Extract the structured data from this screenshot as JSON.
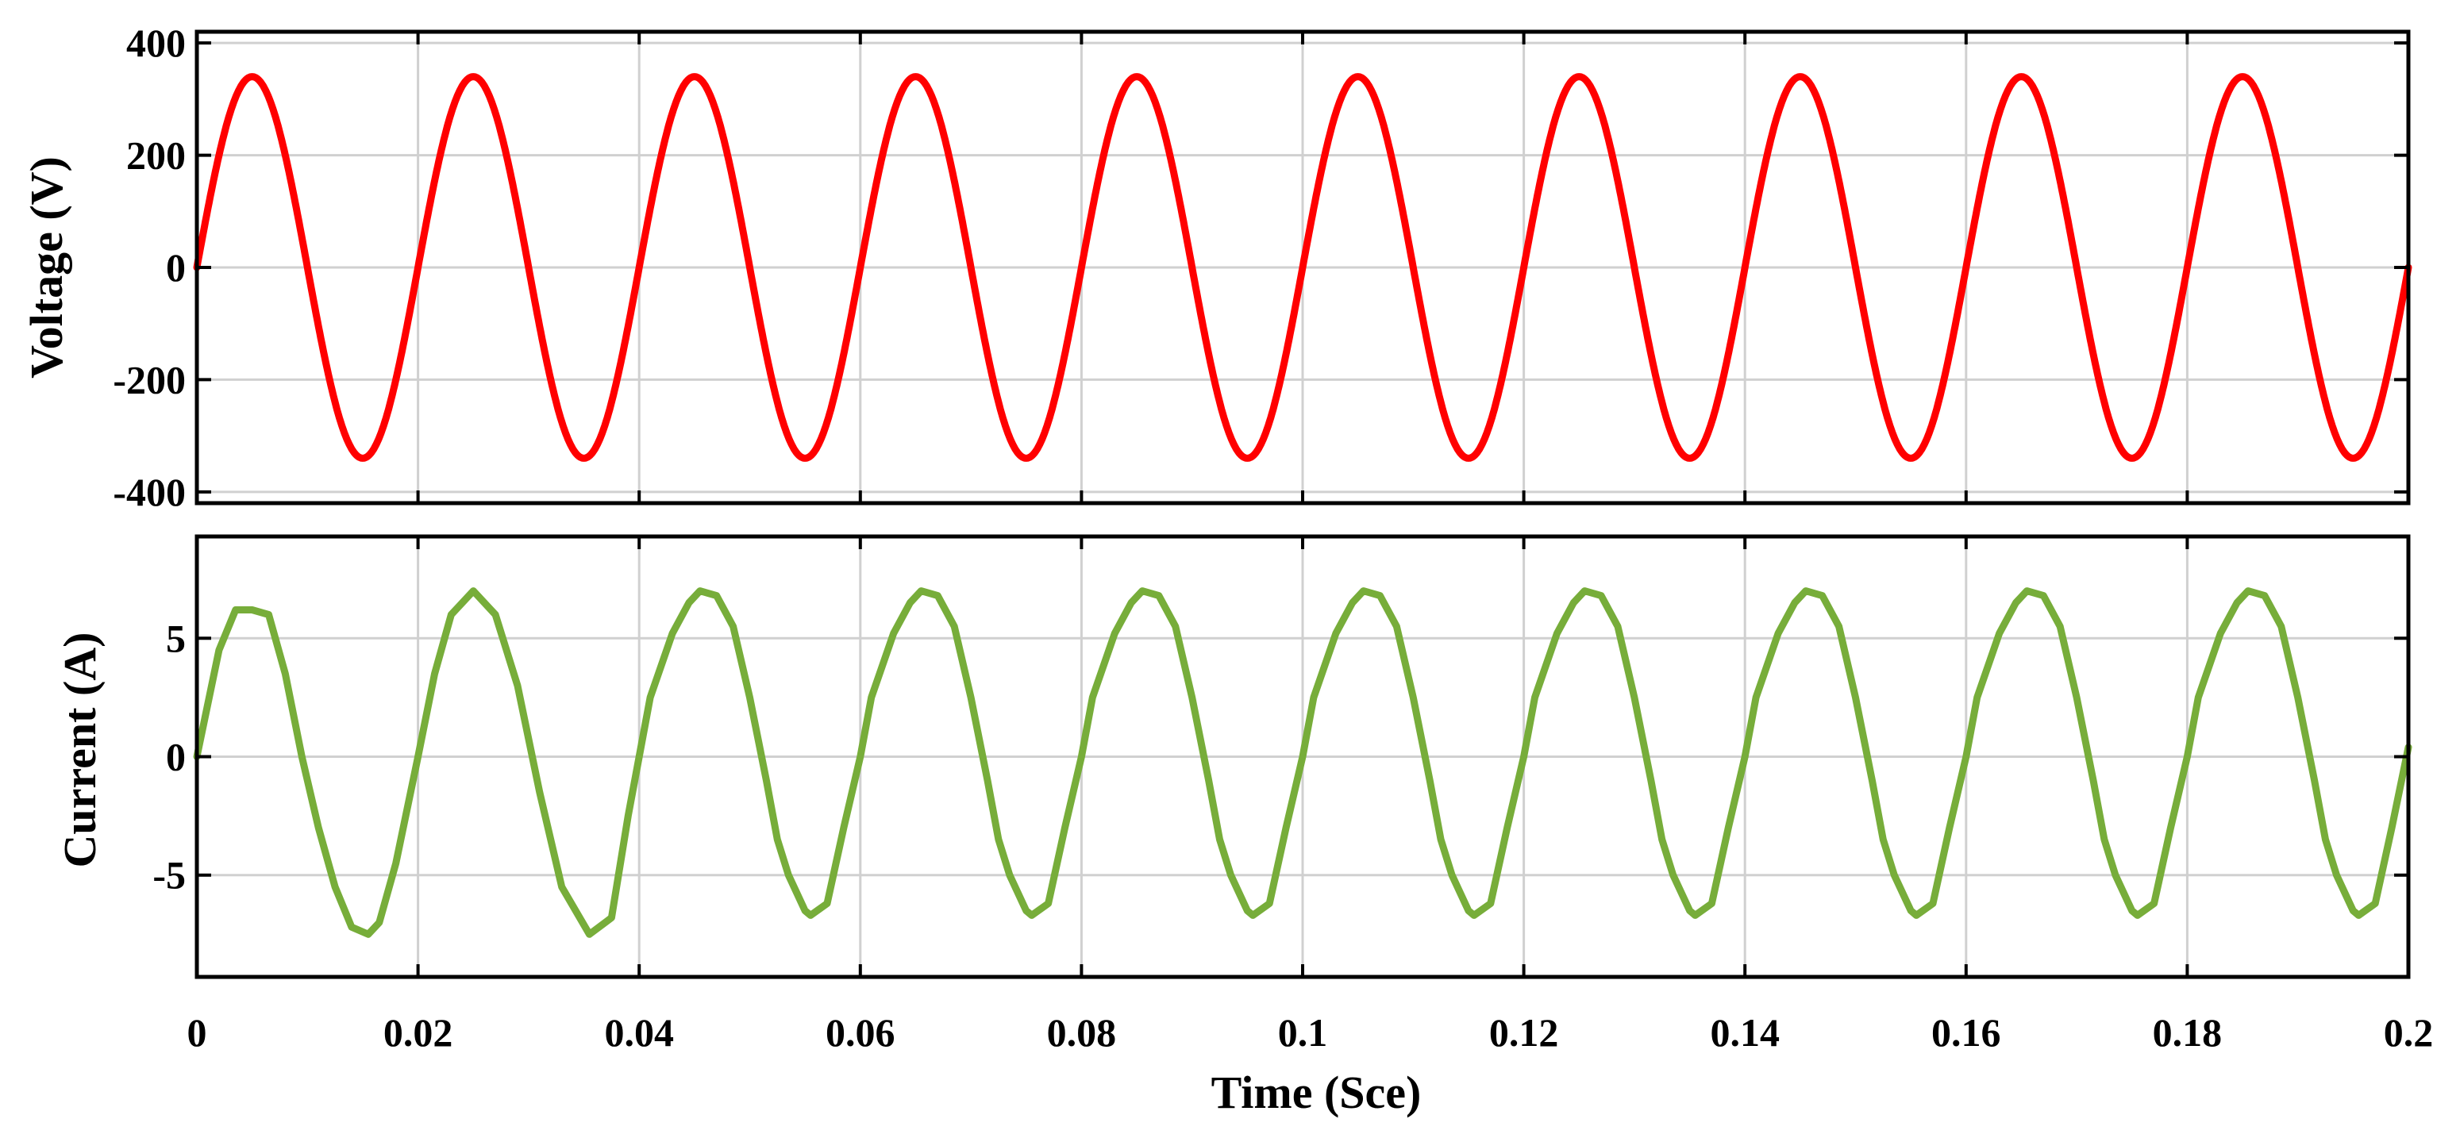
{
  "chart_data": [
    {
      "type": "line",
      "panel": "top",
      "ylabel": "Voltage (V)",
      "xlim": [
        0,
        0.2
      ],
      "ylim": [
        -420,
        420
      ],
      "yticks": [
        400,
        200,
        0,
        -200,
        -400
      ],
      "ytick_labels": [
        "400",
        "200",
        "0",
        "-200",
        "-400"
      ],
      "grid": true,
      "series": [
        {
          "name": "Voltage",
          "color": "#ff0000",
          "waveform": "sine",
          "amplitude": 340,
          "frequency_hz": 50,
          "x": [
            0,
            0.005,
            0.015,
            0.025,
            0.035,
            0.045,
            0.055,
            0.065,
            0.075,
            0.085,
            0.095,
            0.105,
            0.115,
            0.125,
            0.135,
            0.145,
            0.155,
            0.165,
            0.175,
            0.185,
            0.195,
            0.2
          ],
          "values": [
            0,
            340,
            -340,
            340,
            -340,
            340,
            -340,
            340,
            -340,
            340,
            -340,
            340,
            -340,
            340,
            -340,
            340,
            -340,
            340,
            -340,
            340,
            -340,
            0
          ]
        }
      ]
    },
    {
      "type": "line",
      "panel": "bottom",
      "ylabel": "Current (A)",
      "xlabel": "Time (Sce)",
      "xlim": [
        0,
        0.2
      ],
      "ylim": [
        -9.3,
        9.3
      ],
      "yticks": [
        5,
        0,
        -5
      ],
      "ytick_labels": [
        "5",
        "0",
        "-5"
      ],
      "xticks": [
        0,
        0.02,
        0.04,
        0.06,
        0.08,
        0.1,
        0.12,
        0.14,
        0.16,
        0.18,
        0.2
      ],
      "xtick_labels": [
        "0",
        "0.02",
        "0.04",
        "0.06",
        "0.08",
        "0.1",
        "0.12",
        "0.14",
        "0.16",
        "0.18",
        "0.2"
      ],
      "grid": true,
      "series": [
        {
          "name": "Current",
          "color": "#77ad3a",
          "first_cycle": {
            "x": [
              0,
              0.002,
              0.0035,
              0.005,
              0.0065,
              0.008,
              0.0095,
              0.011,
              0.0125,
              0.014,
              0.0155,
              0.0165,
              0.018,
              0.02,
              0.0215,
              0.023,
              0.025,
              0.027,
              0.029,
              0.031,
              0.033,
              0.0355,
              0.0375,
              0.039,
              0.04
            ],
            "values": [
              0,
              4.5,
              6.2,
              6.2,
              6.0,
              3.5,
              0,
              -3.0,
              -5.5,
              -7.2,
              -7.5,
              -7.0,
              -4.5,
              0,
              3.5,
              6.0,
              7.0,
              6.0,
              3.0,
              -1.5,
              -5.5,
              -7.5,
              -6.8,
              -2.5,
              0
            ]
          },
          "periodic_cycle": {
            "period": 0.02,
            "phase_x": [
              0,
              0.001,
              0.003,
              0.0045,
              0.0055,
              0.007,
              0.0085,
              0.01,
              0.0115,
              0.0125,
              0.0135,
              0.015,
              0.0155,
              0.017,
              0.0185,
              0.02
            ],
            "values": [
              0,
              2.5,
              5.2,
              6.5,
              7.0,
              6.8,
              5.5,
              2.5,
              -1.0,
              -3.5,
              -5.0,
              -6.5,
              -6.7,
              -6.2,
              -3.0,
              0
            ]
          },
          "final_value": 0.4
        }
      ]
    }
  ]
}
